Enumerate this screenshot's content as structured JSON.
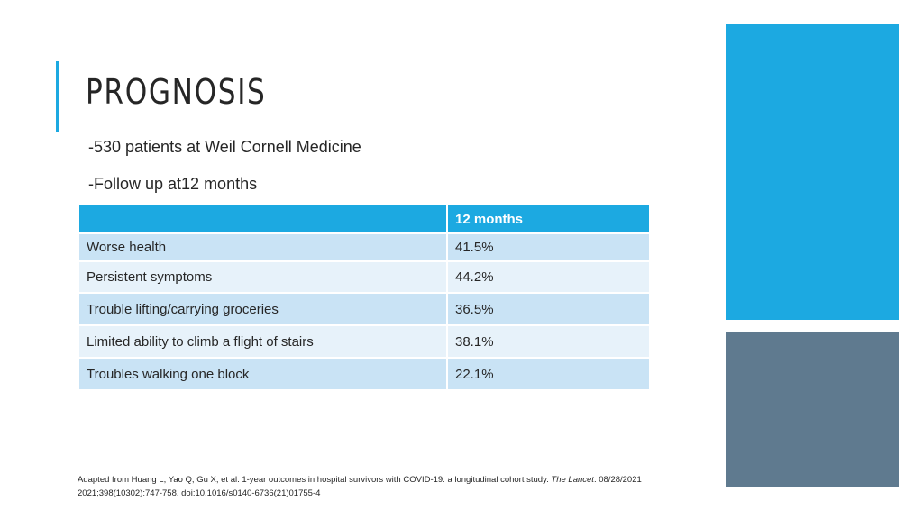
{
  "slide": {
    "title": "PROGNOSIS",
    "bullets": [
      "-530 patients at Weil Cornell Medicine",
      "-Follow up at12 months"
    ]
  },
  "table": {
    "header": [
      "",
      "12 months"
    ],
    "rows": [
      [
        "Worse health",
        "41.5%"
      ],
      [
        "Persistent symptoms",
        "44.2%"
      ],
      [
        "Trouble lifting/carrying groceries",
        "36.5%"
      ],
      [
        "Limited ability to climb a flight of stairs",
        "38.1%"
      ],
      [
        "Troubles walking one block",
        "22.1%"
      ]
    ]
  },
  "citation": {
    "part1": "Adapted from Huang L, Yao Q, Gu X, et al. 1-year outcomes in hospital survivors with COVID-19: a longitudinal cohort study.",
    "journal": "The Lancet",
    "part2": ". 08/28/2021 2021;398(10302):747-758. doi:10.1016/s0140-6736(21)01755-4"
  },
  "colors": {
    "accent_blue": "#1ca9e1",
    "slate": "#5f7a8f",
    "row_dark": "#c9e3f5",
    "row_light": "#e7f2fa"
  }
}
